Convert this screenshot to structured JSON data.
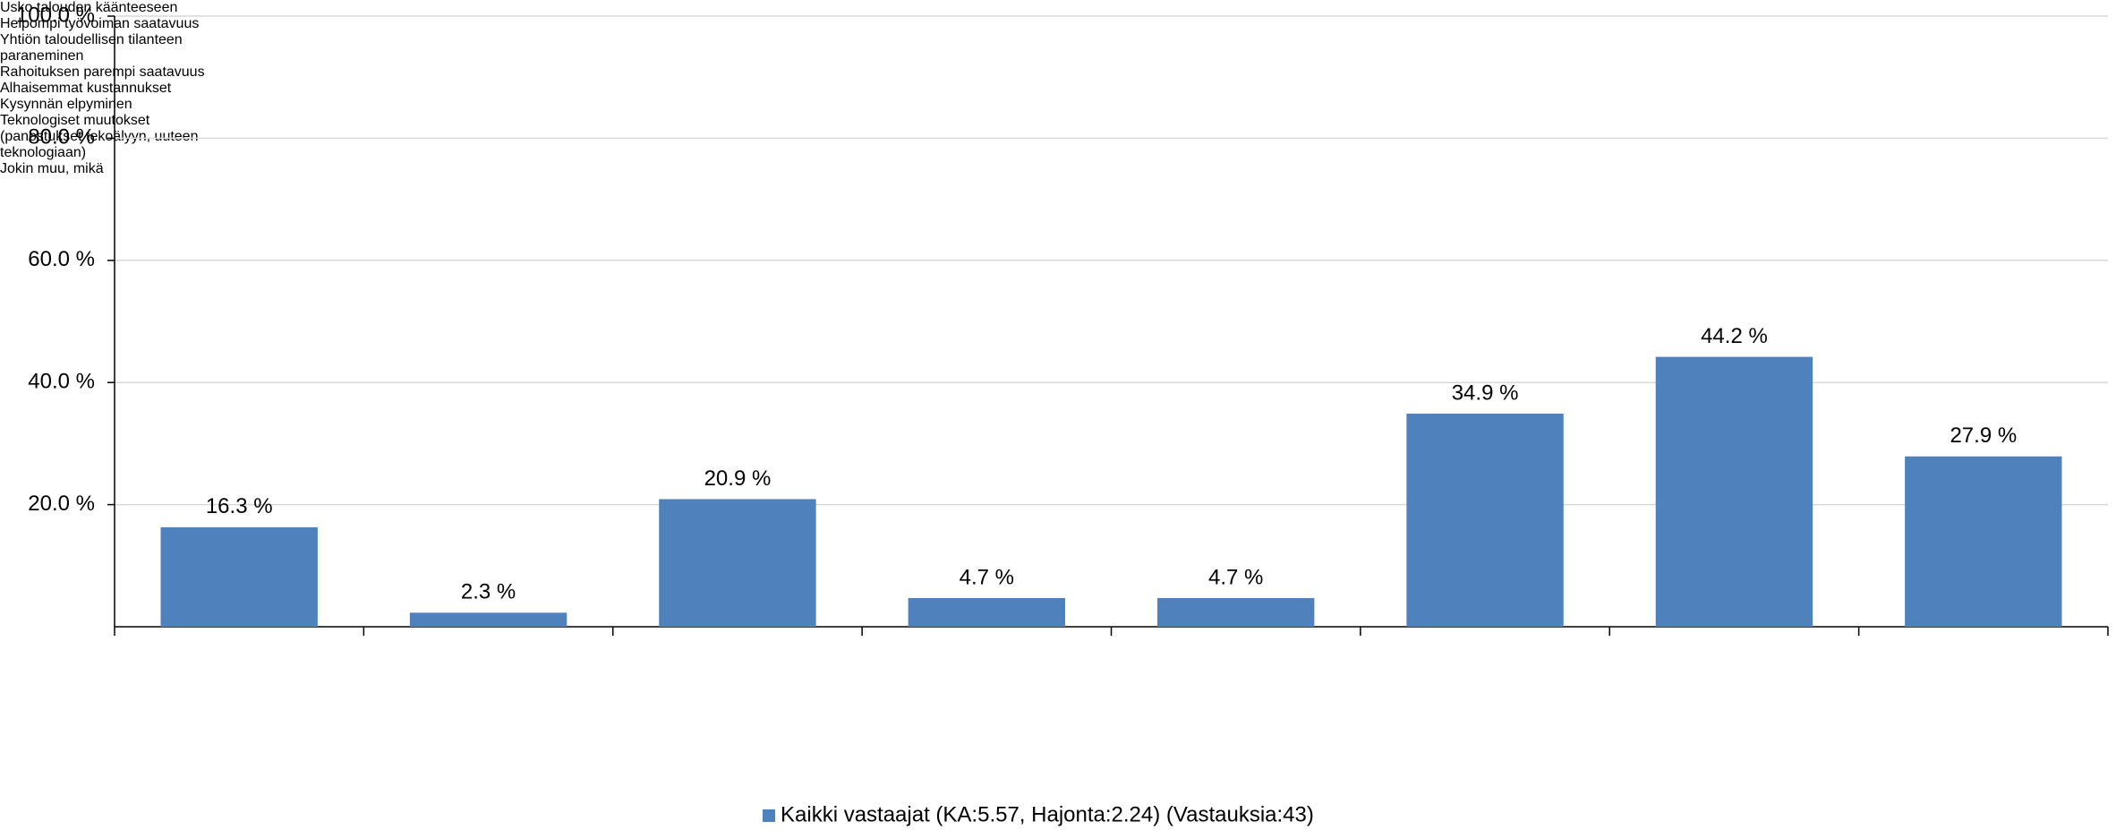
{
  "chart_data": {
    "type": "bar",
    "categories": [
      "Usko talouden käänteeseen",
      "Helpompi työvoiman saatavuus",
      "Yhtiön taloudellisen tilanteen paraneminen",
      "Rahoituksen parempi saatavuus",
      "Alhaisemmat kustannukset",
      "Kysynnän elpyminen",
      "Teknologiset muutokset (panostukset tekoälyyn, uuteen teknologiaan)",
      "Jokin muu, mikä"
    ],
    "series": [
      {
        "name": "Kaikki vastaajat (KA:5.57, Hajonta:2.24) (Vastauksia:43)",
        "color": "#4f81bd",
        "values": [
          16.3,
          2.3,
          20.9,
          4.7,
          4.7,
          34.9,
          44.2,
          27.9
        ],
        "value_labels": [
          "16.3 %",
          "2.3 %",
          "20.9 %",
          "4.7 %",
          "4.7 %",
          "34.9 %",
          "44.2 %",
          "27.9 %"
        ]
      }
    ],
    "ylim": [
      0,
      100
    ],
    "yticks": [
      {
        "value": 20,
        "label": "20.0 %"
      },
      {
        "value": 40,
        "label": "40.0 %"
      },
      {
        "value": 60,
        "label": "60.0 %"
      },
      {
        "value": 80,
        "label": "80.0 %"
      },
      {
        "value": 100,
        "label": "100.0 %"
      }
    ],
    "grid": true,
    "legend": "bottom"
  }
}
